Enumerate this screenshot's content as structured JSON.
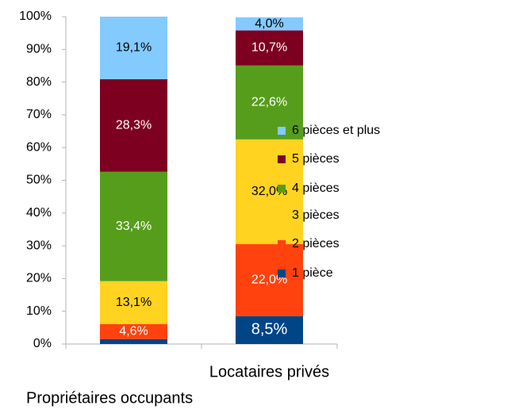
{
  "chart_data": {
    "type": "stacked_bar",
    "categories": [
      "Propriétaires occupants",
      "Locataires privés"
    ],
    "series": [
      {
        "name": "1 pièce",
        "color": "#004586",
        "values": [
          1.5,
          8.5
        ],
        "value_labels": [
          null,
          "8,5%"
        ]
      },
      {
        "name": "2 pièces",
        "color": "#ff420e",
        "values": [
          4.6,
          22.0
        ],
        "value_labels": [
          "4,6%",
          "22,0%"
        ]
      },
      {
        "name": "3 pièces",
        "color": "#ffd320",
        "values": [
          13.1,
          32.0
        ],
        "value_labels": [
          "13,1%",
          "32,0%"
        ]
      },
      {
        "name": "4 pièces",
        "color": "#579d1c",
        "values": [
          33.4,
          22.6
        ],
        "value_labels": [
          "33,4%",
          "22,6%"
        ]
      },
      {
        "name": "5 pièces",
        "color": "#7e0021",
        "values": [
          28.3,
          10.7
        ],
        "value_labels": [
          "28,3%",
          "10,7%"
        ]
      },
      {
        "name": "6 pièces et plus",
        "color": "#83caff",
        "values": [
          19.1,
          4.0
        ],
        "value_labels": [
          "19,1%",
          "4,0%"
        ]
      }
    ],
    "ylim": [
      0,
      100
    ],
    "yticks": [
      {
        "value": 0,
        "label": "0%"
      },
      {
        "value": 10,
        "label": "10%"
      },
      {
        "value": 20,
        "label": "20%"
      },
      {
        "value": 30,
        "label": "30%"
      },
      {
        "value": 40,
        "label": "40%"
      },
      {
        "value": 50,
        "label": "50%"
      },
      {
        "value": 60,
        "label": "60%"
      },
      {
        "value": 70,
        "label": "70%"
      },
      {
        "value": 80,
        "label": "80%"
      },
      {
        "value": 90,
        "label": "90%"
      },
      {
        "value": 100,
        "label": "100%"
      }
    ],
    "grid": false,
    "legend": "right"
  }
}
